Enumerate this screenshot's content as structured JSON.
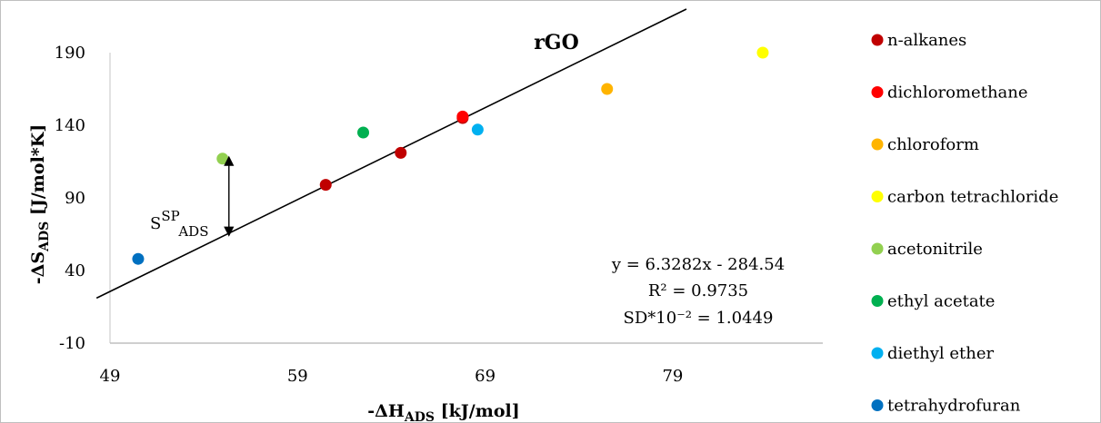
{
  "chart_data": {
    "type": "scatter",
    "title": "rGO",
    "xlabel": {
      "main": "-ΔH",
      "sub": "ADS",
      "unit": " [kJ/mol]"
    },
    "ylabel": {
      "main": "-ΔS",
      "sub": "ADS",
      "unit": " [J/mol*K]"
    },
    "xlim": [
      49,
      87
    ],
    "ylim": [
      -10,
      220
    ],
    "xticks": [
      49,
      59,
      69,
      79
    ],
    "yticks": [
      -10,
      40,
      90,
      140,
      190
    ],
    "grid": false,
    "legend_position": "right",
    "series": [
      {
        "name": "n-alkanes",
        "color": "#c00000",
        "points": [
          [
            60.5,
            99
          ],
          [
            64.5,
            121
          ],
          [
            67.8,
            145
          ]
        ]
      },
      {
        "name": "dichloromethane",
        "color": "#ff0000",
        "points": [
          [
            67.8,
            146
          ]
        ]
      },
      {
        "name": "chloroform",
        "color": "#ffb400",
        "points": [
          [
            75.5,
            165
          ]
        ]
      },
      {
        "name": "carbon tetrachloride",
        "color": "#ffff00",
        "points": [
          [
            83.8,
            190
          ]
        ]
      },
      {
        "name": "acetonitrile",
        "color": "#92d050",
        "points": [
          [
            55,
            117
          ]
        ]
      },
      {
        "name": "ethyl acetate",
        "color": "#00b050",
        "points": [
          [
            62.5,
            135
          ]
        ]
      },
      {
        "name": "diethyl ether",
        "color": "#00b0f0",
        "points": [
          [
            68.6,
            137
          ]
        ]
      },
      {
        "name": "tetrahydrofuran",
        "color": "#0070c0",
        "points": [
          [
            50.5,
            48
          ]
        ]
      }
    ],
    "trendline": {
      "slope": 6.3282,
      "intercept": -284.54
    },
    "equation_lines": [
      "y = 6.3282x - 284.54",
      "R² = 0.9735",
      "SD*10⁻² = 1.0449"
    ],
    "annotation": {
      "label": {
        "main": "S",
        "sup": "SP",
        "sub": "ADS"
      },
      "x": 55,
      "y_from": 68,
      "y_to": 113
    }
  }
}
